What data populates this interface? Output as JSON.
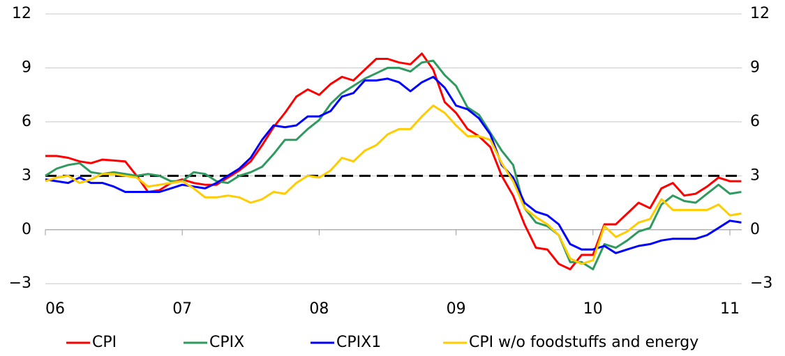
{
  "chart_data": {
    "type": "line",
    "categories": [
      "06",
      null,
      null,
      null,
      null,
      null,
      null,
      null,
      null,
      null,
      null,
      null,
      "07",
      null,
      null,
      null,
      null,
      null,
      null,
      null,
      null,
      null,
      null,
      null,
      "08",
      null,
      null,
      null,
      null,
      null,
      null,
      null,
      null,
      null,
      null,
      null,
      "09",
      null,
      null,
      null,
      null,
      null,
      null,
      null,
      null,
      null,
      null,
      null,
      "10",
      null,
      null,
      null,
      null,
      null,
      null,
      null,
      null,
      null,
      null,
      null,
      "11",
      null
    ],
    "series": [
      {
        "name": "CPI",
        "color": "#ff0000",
        "values": [
          4.1,
          4.1,
          4.0,
          3.8,
          3.7,
          3.9,
          3.85,
          3.8,
          3.0,
          2.1,
          2.2,
          2.6,
          2.8,
          2.6,
          2.5,
          2.5,
          2.9,
          3.3,
          3.8,
          4.7,
          5.7,
          6.5,
          7.4,
          7.8,
          7.5,
          8.1,
          8.5,
          8.3,
          8.9,
          9.5,
          9.5,
          9.3,
          9.2,
          9.8,
          8.9,
          7.1,
          6.5,
          5.6,
          5.2,
          4.6,
          3.0,
          1.9,
          0.3,
          -1.0,
          -1.1,
          -1.9,
          -2.2,
          -1.4,
          -1.4,
          0.3,
          0.3,
          0.9,
          1.5,
          1.2,
          2.3,
          2.6,
          1.9,
          2.0,
          2.4,
          2.9,
          2.7,
          2.7
        ]
      },
      {
        "name": "CPIX",
        "color": "#2e9a5e",
        "values": [
          3.0,
          3.4,
          3.6,
          3.7,
          3.2,
          3.1,
          3.2,
          3.1,
          3.0,
          3.1,
          3.0,
          2.7,
          2.7,
          3.2,
          3.1,
          2.7,
          2.6,
          3.0,
          3.2,
          3.5,
          4.2,
          5.0,
          5.0,
          5.6,
          6.1,
          7.0,
          7.6,
          8.0,
          8.4,
          8.7,
          9.0,
          9.0,
          8.8,
          9.3,
          9.4,
          8.6,
          8.0,
          6.8,
          6.4,
          5.4,
          4.4,
          3.6,
          1.2,
          0.4,
          0.2,
          -0.3,
          -1.8,
          -1.8,
          -2.2,
          -0.8,
          -1.0,
          -0.6,
          -0.1,
          0.1,
          1.4,
          1.9,
          1.6,
          1.5,
          2.0,
          2.5,
          2.0,
          2.1
        ]
      },
      {
        "name": "CPIX1",
        "color": "#0000ff",
        "values": [
          2.8,
          2.7,
          2.6,
          2.9,
          2.6,
          2.6,
          2.4,
          2.1,
          2.1,
          2.1,
          2.1,
          2.3,
          2.5,
          2.4,
          2.3,
          2.6,
          3.0,
          3.4,
          4.0,
          5.0,
          5.8,
          5.7,
          5.8,
          6.3,
          6.3,
          6.6,
          7.4,
          7.6,
          8.3,
          8.3,
          8.4,
          8.2,
          7.7,
          8.2,
          8.5,
          7.9,
          6.9,
          6.7,
          6.2,
          5.3,
          3.6,
          2.9,
          1.5,
          1.0,
          0.8,
          0.3,
          -0.8,
          -1.1,
          -1.1,
          -0.9,
          -1.3,
          -1.1,
          -0.9,
          -0.8,
          -0.6,
          -0.5,
          -0.5,
          -0.5,
          -0.3,
          0.1,
          0.5,
          0.4
        ]
      },
      {
        "name": "CPI w/o foodstuffs and energy",
        "color": "#ffcc00",
        "values": [
          2.7,
          2.9,
          3.0,
          2.6,
          2.8,
          3.1,
          3.1,
          3.0,
          2.9,
          2.4,
          2.5,
          2.6,
          2.7,
          2.3,
          1.8,
          1.8,
          1.9,
          1.8,
          1.5,
          1.7,
          2.1,
          2.0,
          2.6,
          3.0,
          2.9,
          3.3,
          4.0,
          3.8,
          4.4,
          4.7,
          5.3,
          5.6,
          5.6,
          6.3,
          6.9,
          6.5,
          5.8,
          5.2,
          5.2,
          5.0,
          3.7,
          2.7,
          1.2,
          0.7,
          0.3,
          -0.3,
          -1.6,
          -1.9,
          -1.7,
          0.2,
          -0.4,
          -0.1,
          0.4,
          0.6,
          1.7,
          1.1,
          1.1,
          1.1,
          1.1,
          1.4,
          0.8,
          0.9
        ]
      }
    ],
    "ylim": [
      -4,
      12
    ],
    "yticks": [
      {
        "value": -3,
        "label": "−3"
      },
      0,
      3,
      6,
      9,
      12
    ],
    "grid": true,
    "reference_line": 3,
    "legend": "bottom"
  }
}
